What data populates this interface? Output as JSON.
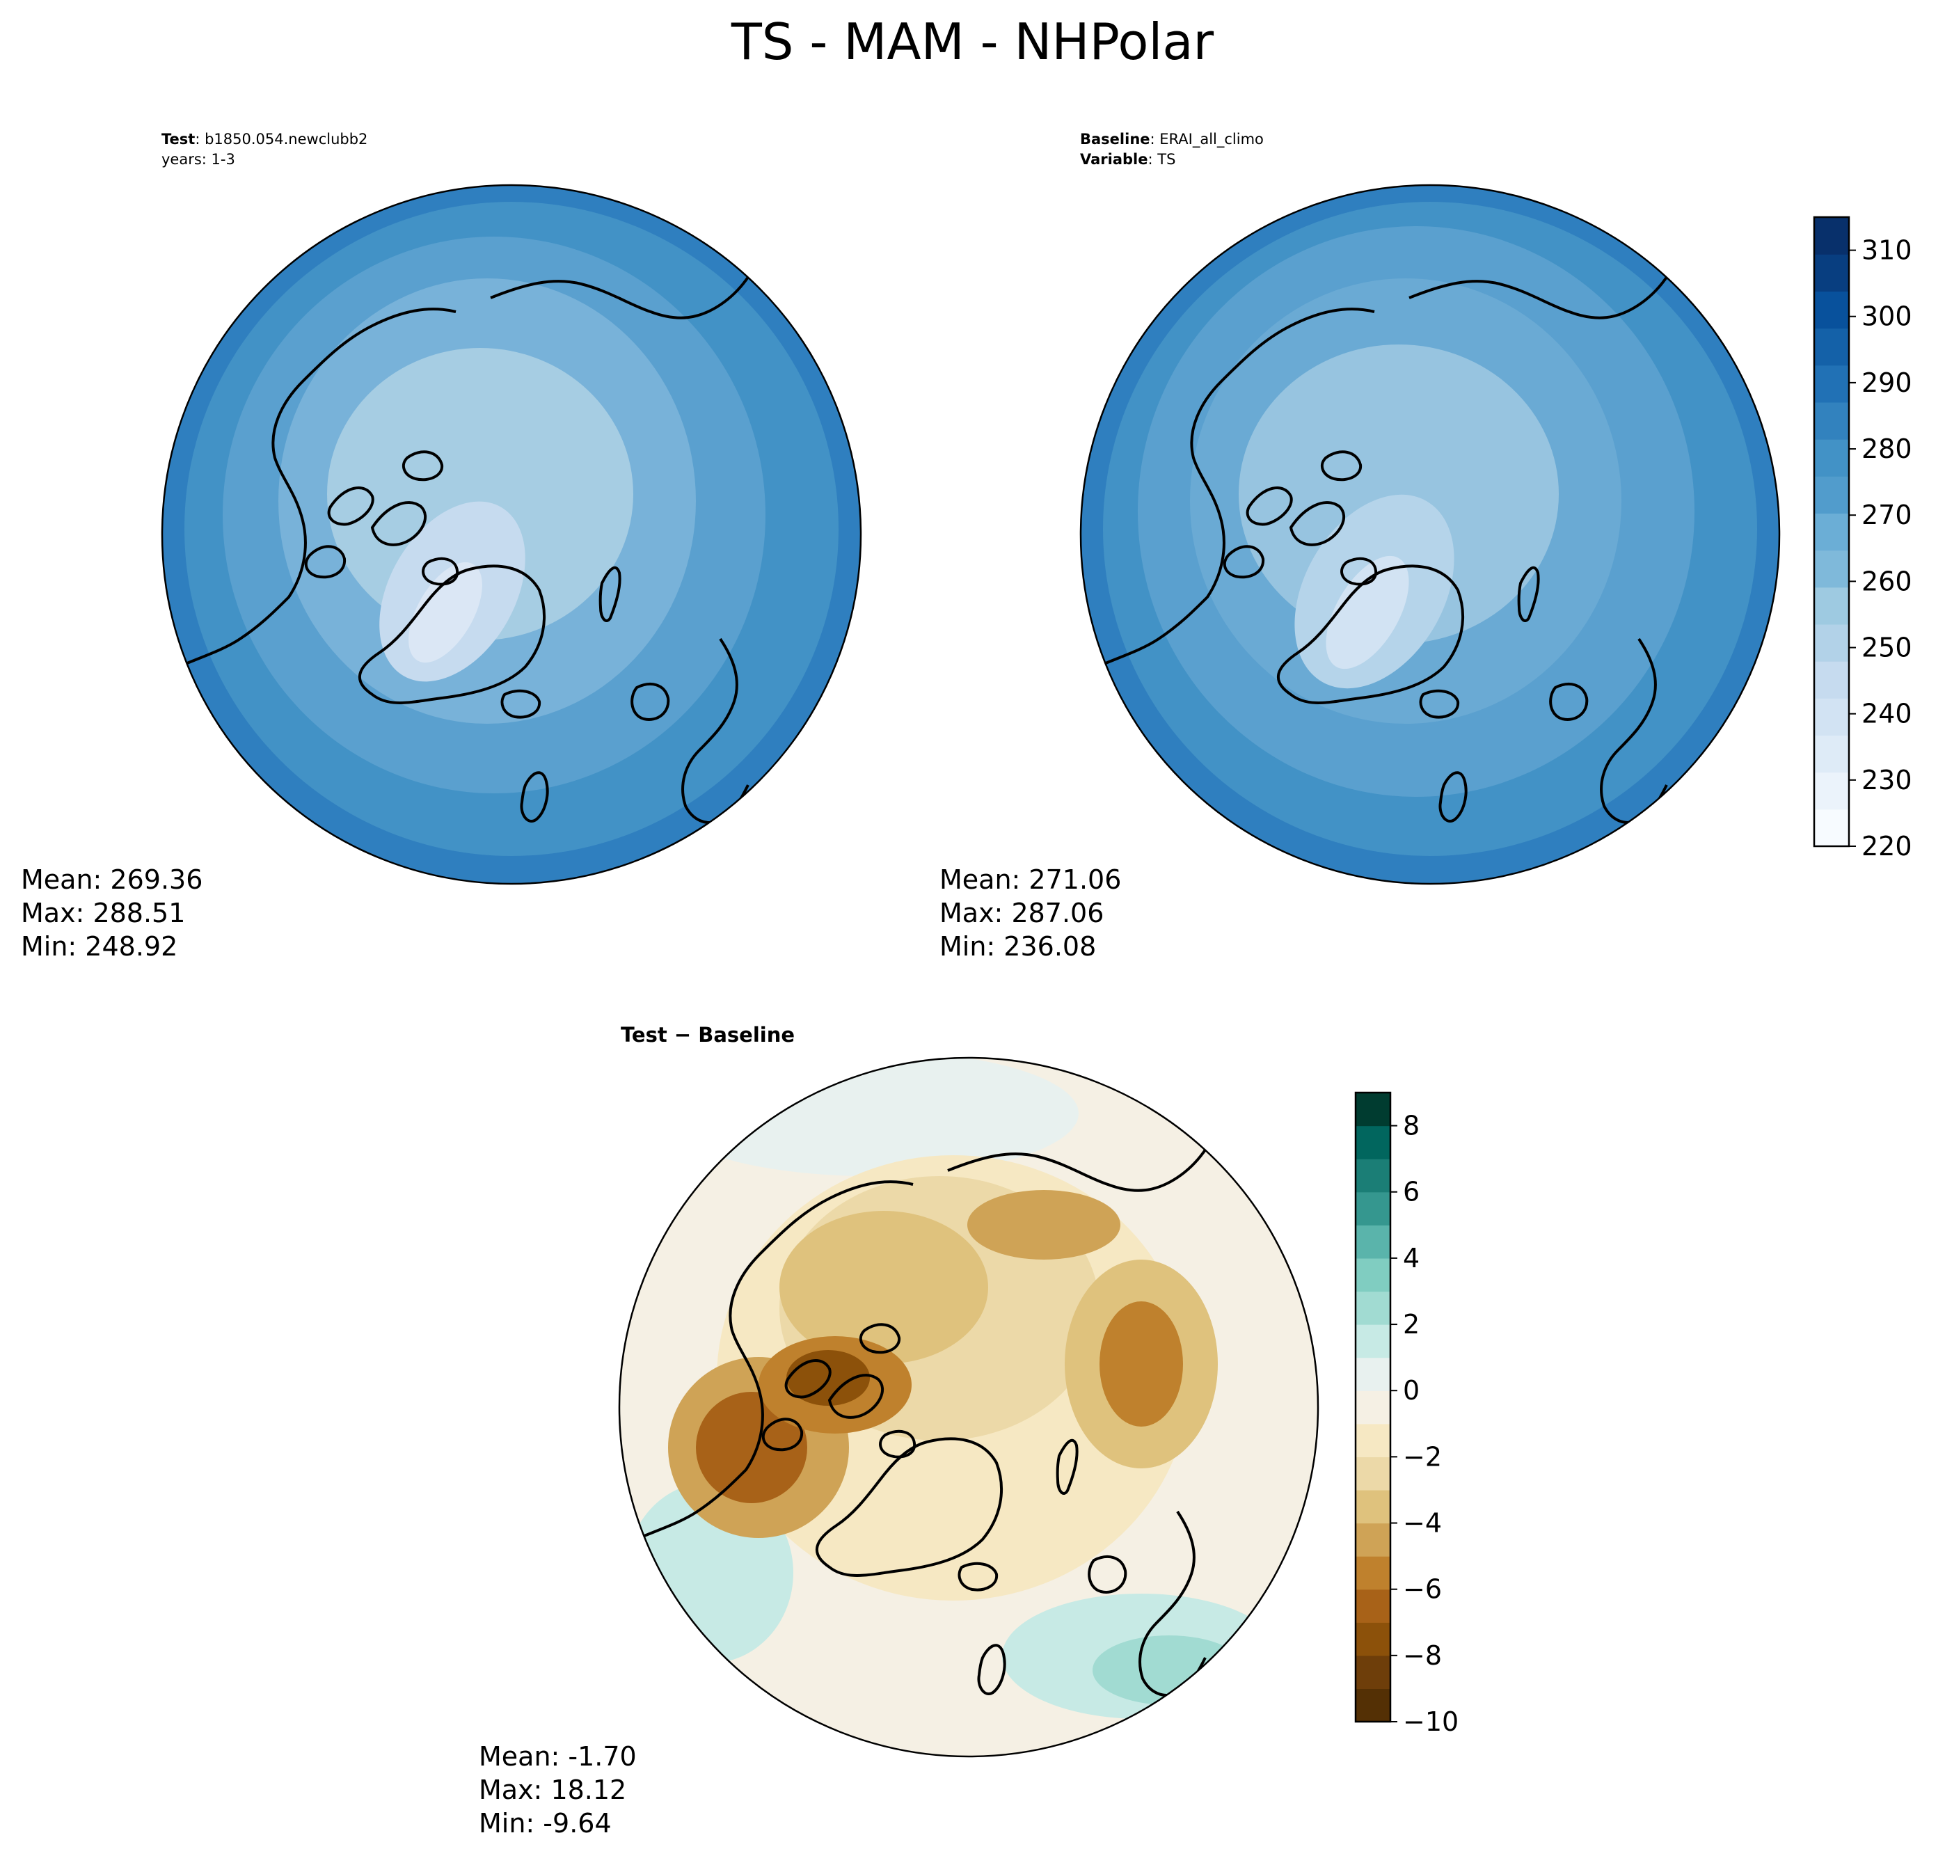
{
  "figure": {
    "title": "TS - MAM - NHPolar"
  },
  "panels": [
    {
      "id": "test",
      "header": [
        {
          "key": "Test",
          "value": "b1850.054.newclubb2"
        },
        {
          "key": "",
          "value": "years: 1-3"
        }
      ],
      "stats": {
        "mean": "Mean: 269.36",
        "max": "Max: 288.51",
        "min": "Min: 248.92"
      }
    },
    {
      "id": "baseline",
      "header": [
        {
          "key": "Baseline",
          "value": "ERAI_all_climo"
        },
        {
          "key": "Variable",
          "value": "TS"
        }
      ],
      "stats": {
        "mean": "Mean: 271.06",
        "max": "Max: 287.06",
        "min": "Min: 236.08"
      }
    },
    {
      "id": "difference",
      "header_title": "Test − Baseline",
      "stats": {
        "mean": "Mean: -1.70",
        "max": "Max: 18.12",
        "min": "Min: -9.64"
      }
    }
  ],
  "colorbars": {
    "main": {
      "colormap": "Blues",
      "ticks": [
        "220",
        "230",
        "240",
        "250",
        "260",
        "270",
        "280",
        "290",
        "300",
        "310"
      ],
      "tick_values": [
        220,
        230,
        240,
        250,
        260,
        270,
        280,
        290,
        300,
        310
      ],
      "range": [
        220,
        315
      ],
      "colors": [
        "#f7fbff",
        "#ebf3fb",
        "#deebf7",
        "#d2e3f3",
        "#c6dbef",
        "#b2d2e8",
        "#9ecae1",
        "#7fb9da",
        "#6baed6",
        "#519ccc",
        "#4292c6",
        "#3282be",
        "#2171b5",
        "#1461a8",
        "#08519c",
        "#083e80",
        "#08306b"
      ]
    },
    "diff": {
      "colormap": "BrBG",
      "ticks": [
        "−10",
        "−8",
        "−6",
        "−4",
        "−2",
        "0",
        "2",
        "4",
        "6",
        "8"
      ],
      "tick_values": [
        -10,
        -8,
        -6,
        -4,
        -2,
        0,
        2,
        4,
        6,
        8
      ],
      "range": [
        -10,
        9
      ],
      "colors": [
        "#543005",
        "#6e3e0a",
        "#8c510a",
        "#a86218",
        "#bf812d",
        "#cfa356",
        "#dfc27d",
        "#ecd9a8",
        "#f6e8c3",
        "#f5f0e4",
        "#e8f1ef",
        "#c7eae5",
        "#a1dbd2",
        "#80cdc1",
        "#5ab4ab",
        "#35978f",
        "#1b7e76",
        "#01665e",
        "#003c30"
      ]
    }
  },
  "map_fill": {
    "test_levels": [
      "#2f7fbf",
      "#4292c6",
      "#5aa0cf",
      "#78b2d9",
      "#a6cde3",
      "#c6dbef",
      "#dbe7f5"
    ],
    "baseline_levels": [
      "#2f7fbf",
      "#4292c6",
      "#5aa0cf",
      "#6aaad4",
      "#97c4e0",
      "#b5d4ea",
      "#d2e3f3"
    ],
    "diff_brown": [
      "#f6e8c3",
      "#ecd9a8",
      "#dfc27d",
      "#cfa356",
      "#bf812d",
      "#a86218",
      "#8c510a"
    ],
    "diff_teal": [
      "#e8f1ef",
      "#c7eae5",
      "#a1dbd2",
      "#80cdc1"
    ]
  }
}
